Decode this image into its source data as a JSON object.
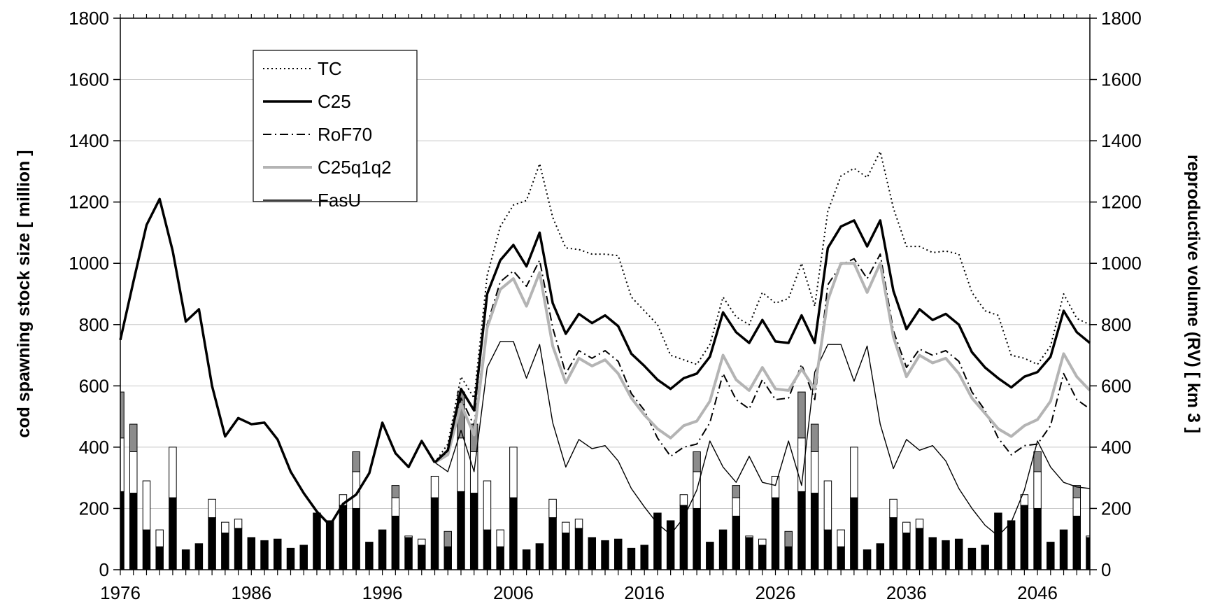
{
  "chart_data": {
    "type": "line",
    "title": "",
    "ylabel": "cod spawning stock size [ million ]",
    "y2label": "reproductive volume (RV) [ km 3 ]",
    "xlabel": "",
    "ylim": [
      0,
      1800
    ],
    "y2lim": [
      0,
      1800
    ],
    "y_ticks": [
      "0",
      "200",
      "400",
      "600",
      "800",
      "1000",
      "1200",
      "1400",
      "1600",
      "1800"
    ],
    "y2_ticks": [
      "0",
      "200",
      "400",
      "600",
      "800",
      "1000",
      "1200",
      "1400",
      "1600",
      "1800"
    ],
    "x_ticks": [
      "1976",
      "1986",
      "1996",
      "2006",
      "2016",
      "2026",
      "2036",
      "2046"
    ],
    "x_tick_values": [
      1976,
      1986,
      1996,
      2006,
      2016,
      2026,
      2036,
      2046
    ],
    "xlim": [
      1976,
      2050
    ],
    "grid": "horizontal",
    "legend_position": "top-left",
    "historical": {
      "x": [
        1976,
        1977,
        1978,
        1979,
        1980,
        1981,
        1982,
        1983,
        1984,
        1985,
        1986,
        1987,
        1988,
        1989,
        1990,
        1991,
        1992,
        1993,
        1994,
        1995,
        1996,
        1997,
        1998,
        1999,
        2000
      ],
      "values": [
        750,
        940,
        1125,
        1210,
        1040,
        810,
        850,
        600,
        435,
        495,
        475,
        480,
        425,
        320,
        250,
        190,
        145,
        215,
        245,
        315,
        480,
        380,
        335,
        420,
        350
      ]
    },
    "series": [
      {
        "name": "TC",
        "style": "dotted-black",
        "x": [
          2000,
          2001,
          2002,
          2003,
          2004,
          2005,
          2006,
          2007,
          2008,
          2009,
          2010,
          2011,
          2012,
          2013,
          2014,
          2015,
          2016,
          2017,
          2018,
          2019,
          2020,
          2021,
          2022,
          2023,
          2024,
          2025,
          2026,
          2027,
          2028,
          2029,
          2030,
          2031,
          2032,
          2033,
          2034,
          2035,
          2036,
          2037,
          2038,
          2039,
          2040,
          2041,
          2042,
          2043,
          2044,
          2045,
          2046,
          2047,
          2048,
          2049,
          2050
        ],
        "values": [
          350,
          410,
          630,
          560,
          960,
          1120,
          1190,
          1205,
          1325,
          1150,
          1050,
          1045,
          1030,
          1030,
          1025,
          890,
          845,
          800,
          700,
          685,
          670,
          735,
          890,
          825,
          800,
          905,
          870,
          885,
          1000,
          860,
          1170,
          1285,
          1310,
          1280,
          1365,
          1180,
          1055,
          1055,
          1035,
          1040,
          1030,
          905,
          845,
          830,
          700,
          690,
          670,
          730,
          900,
          820,
          800
        ]
      },
      {
        "name": "C25",
        "style": "thick-black",
        "x": [
          2000,
          2001,
          2002,
          2003,
          2004,
          2005,
          2006,
          2007,
          2008,
          2009,
          2010,
          2011,
          2012,
          2013,
          2014,
          2015,
          2016,
          2017,
          2018,
          2019,
          2020,
          2021,
          2022,
          2023,
          2024,
          2025,
          2026,
          2027,
          2028,
          2029,
          2030,
          2031,
          2032,
          2033,
          2034,
          2035,
          2036,
          2037,
          2038,
          2039,
          2040,
          2041,
          2042,
          2043,
          2044,
          2045,
          2046,
          2047,
          2048,
          2049,
          2050
        ],
        "values": [
          350,
          390,
          590,
          520,
          900,
          1010,
          1060,
          990,
          1100,
          870,
          770,
          835,
          805,
          830,
          795,
          705,
          665,
          620,
          590,
          625,
          640,
          695,
          840,
          775,
          740,
          815,
          745,
          740,
          830,
          740,
          1050,
          1120,
          1140,
          1055,
          1140,
          910,
          785,
          850,
          815,
          835,
          800,
          710,
          660,
          625,
          595,
          630,
          645,
          695,
          845,
          775,
          740
        ]
      },
      {
        "name": "RoF70",
        "style": "dashdot-black",
        "x": [
          2000,
          2001,
          2002,
          2003,
          2004,
          2005,
          2006,
          2007,
          2008,
          2009,
          2010,
          2011,
          2012,
          2013,
          2014,
          2015,
          2016,
          2017,
          2018,
          2019,
          2020,
          2021,
          2022,
          2023,
          2024,
          2025,
          2026,
          2027,
          2028,
          2029,
          2030,
          2031,
          2032,
          2033,
          2034,
          2035,
          2036,
          2037,
          2038,
          2039,
          2040,
          2041,
          2042,
          2043,
          2044,
          2045,
          2046,
          2047,
          2048,
          2049,
          2050
        ],
        "values": [
          350,
          380,
          560,
          470,
          800,
          940,
          975,
          925,
          1010,
          790,
          640,
          715,
          690,
          715,
          680,
          575,
          520,
          430,
          370,
          400,
          410,
          480,
          640,
          555,
          525,
          620,
          555,
          560,
          670,
          555,
          930,
          995,
          1015,
          950,
          1030,
          780,
          660,
          720,
          700,
          715,
          680,
          580,
          520,
          430,
          375,
          405,
          410,
          470,
          640,
          555,
          525
        ]
      },
      {
        "name": "C25q1q2",
        "style": "thick-gray",
        "x": [
          2000,
          2001,
          2002,
          2003,
          2004,
          2005,
          2006,
          2007,
          2008,
          2009,
          2010,
          2011,
          2012,
          2013,
          2014,
          2015,
          2016,
          2017,
          2018,
          2019,
          2020,
          2021,
          2022,
          2023,
          2024,
          2025,
          2026,
          2027,
          2028,
          2029,
          2030,
          2031,
          2032,
          2033,
          2034,
          2035,
          2036,
          2037,
          2038,
          2039,
          2040,
          2041,
          2042,
          2043,
          2044,
          2045,
          2046,
          2047,
          2048,
          2049,
          2050
        ],
        "values": [
          350,
          375,
          540,
          440,
          790,
          915,
          950,
          860,
          970,
          730,
          610,
          690,
          665,
          685,
          640,
          560,
          505,
          460,
          430,
          470,
          485,
          550,
          700,
          620,
          585,
          660,
          590,
          585,
          655,
          590,
          880,
          1000,
          1000,
          905,
          1000,
          760,
          630,
          700,
          675,
          690,
          640,
          560,
          510,
          460,
          435,
          470,
          490,
          550,
          705,
          630,
          585
        ]
      },
      {
        "name": "FasU",
        "style": "thin-black",
        "x": [
          2000,
          2001,
          2002,
          2003,
          2004,
          2005,
          2006,
          2007,
          2008,
          2009,
          2010,
          2011,
          2012,
          2013,
          2014,
          2015,
          2016,
          2017,
          2018,
          2019,
          2020,
          2021,
          2022,
          2023,
          2024,
          2025,
          2026,
          2027,
          2028,
          2029,
          2030,
          2031,
          2032,
          2033,
          2034,
          2035,
          2036,
          2037,
          2038,
          2039,
          2040,
          2041,
          2042,
          2043,
          2044,
          2045,
          2046,
          2047,
          2048,
          2049,
          2050
        ],
        "values": [
          350,
          320,
          455,
          320,
          660,
          745,
          745,
          625,
          735,
          480,
          335,
          425,
          395,
          405,
          355,
          265,
          205,
          150,
          115,
          170,
          260,
          420,
          335,
          285,
          370,
          285,
          275,
          420,
          275,
          645,
          735,
          735,
          615,
          730,
          475,
          330,
          425,
          390,
          405,
          355,
          265,
          200,
          145,
          110,
          155,
          260,
          420,
          335,
          285,
          270,
          265
        ]
      }
    ],
    "bars": {
      "axis": "right",
      "description_segments": [
        "black",
        "white",
        "gray"
      ],
      "x": [
        1976,
        1977,
        1978,
        1979,
        1980,
        1981,
        1982,
        1983,
        1984,
        1985,
        1986,
        1987,
        1988,
        1989,
        1990,
        1991,
        1992,
        1993,
        1994,
        1995,
        1996,
        1997,
        1998,
        1999,
        2000,
        2001,
        2002,
        2003,
        2004,
        2005,
        2006,
        2007,
        2008,
        2009,
        2010,
        2011,
        2012,
        2013,
        2014,
        2015,
        2016,
        2017,
        2018,
        2019,
        2020,
        2021,
        2022,
        2023,
        2024,
        2025,
        2026,
        2027,
        2028,
        2029,
        2030,
        2031,
        2032,
        2033,
        2034,
        2035,
        2036,
        2037,
        2038,
        2039,
        2040,
        2041,
        2042,
        2043,
        2044,
        2045,
        2046,
        2047,
        2048,
        2049,
        2050
      ],
      "black": [
        255,
        250,
        130,
        75,
        235,
        65,
        85,
        170,
        120,
        135,
        105,
        95,
        100,
        70,
        80,
        185,
        160,
        210,
        200,
        90,
        130,
        175,
        105,
        80,
        235,
        75,
        255,
        250,
        130,
        75,
        235,
        65,
        85,
        170,
        120,
        135,
        105,
        95,
        100,
        70,
        80,
        185,
        160,
        210,
        200,
        90,
        130,
        175,
        105,
        80,
        235,
        75,
        255,
        250,
        130,
        75,
        235,
        65,
        85,
        170,
        120,
        135,
        105,
        95,
        100,
        70,
        80,
        185,
        160,
        210,
        200,
        90,
        130,
        175,
        105
      ],
      "white": [
        175,
        135,
        160,
        55,
        165,
        0,
        0,
        60,
        35,
        30,
        0,
        0,
        0,
        0,
        0,
        0,
        0,
        35,
        120,
        0,
        0,
        60,
        5,
        20,
        70,
        0,
        175,
        135,
        160,
        55,
        165,
        0,
        0,
        60,
        35,
        30,
        0,
        0,
        0,
        0,
        0,
        0,
        0,
        35,
        120,
        0,
        0,
        60,
        5,
        20,
        70,
        0,
        175,
        135,
        160,
        55,
        165,
        0,
        0,
        60,
        35,
        30,
        0,
        0,
        0,
        0,
        0,
        0,
        0,
        35,
        120,
        0,
        0,
        60,
        5
      ],
      "gray": [
        150,
        90,
        0,
        0,
        0,
        0,
        0,
        0,
        0,
        0,
        0,
        0,
        0,
        0,
        0,
        0,
        0,
        0,
        65,
        0,
        0,
        40,
        0,
        0,
        0,
        50,
        150,
        90,
        0,
        0,
        0,
        0,
        0,
        0,
        0,
        0,
        0,
        0,
        0,
        0,
        0,
        0,
        0,
        0,
        65,
        0,
        0,
        40,
        0,
        0,
        0,
        50,
        150,
        90,
        0,
        0,
        0,
        0,
        0,
        0,
        0,
        0,
        0,
        0,
        0,
        0,
        0,
        0,
        0,
        0,
        65,
        0,
        0,
        40,
        0
      ]
    }
  }
}
